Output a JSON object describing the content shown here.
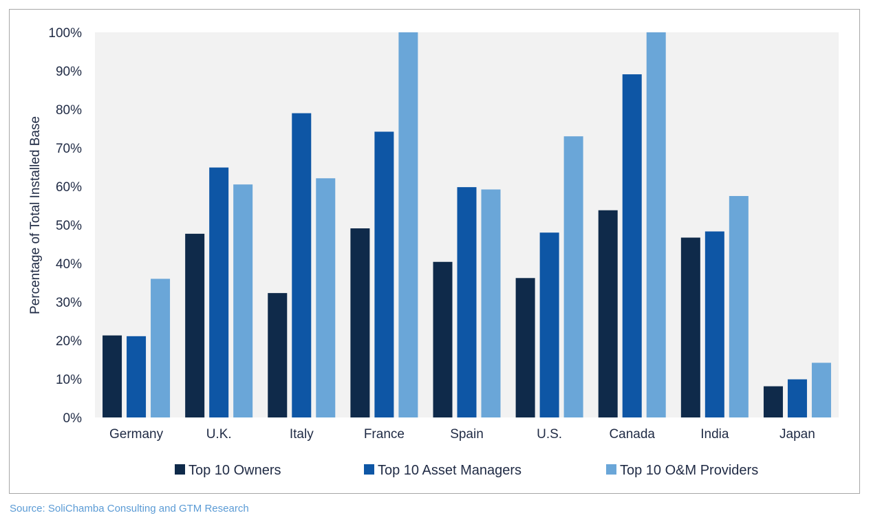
{
  "source_note": "Source: SoliChamba Consulting and GTM Research",
  "colors": {
    "plot_background": "#f2f2f2",
    "axis_text": "#1f2a44",
    "source_text": "#5b9bd5"
  },
  "chart_data": {
    "type": "bar",
    "title": "",
    "xlabel": "",
    "ylabel": "Percentage of Total Installed Base",
    "ylim": [
      0,
      100
    ],
    "y_ticks": [
      0,
      10,
      20,
      30,
      40,
      50,
      60,
      70,
      80,
      90,
      100
    ],
    "y_tick_labels": [
      "0%",
      "10%",
      "20%",
      "30%",
      "40%",
      "50%",
      "60%",
      "70%",
      "80%",
      "90%",
      "100%"
    ],
    "grid": false,
    "legend_position": "bottom",
    "categories": [
      "Germany",
      "U.K.",
      "Italy",
      "France",
      "Spain",
      "U.S.",
      "Canada",
      "India",
      "Japan"
    ],
    "series": [
      {
        "name": "Top 10 Owners",
        "color": "#0f2a4a",
        "values": [
          21.3,
          47.7,
          32.3,
          49.1,
          40.4,
          36.2,
          53.8,
          46.7,
          8.1
        ]
      },
      {
        "name": "Top 10 Asset Managers",
        "color": "#0e56a5",
        "values": [
          21.1,
          64.9,
          79.0,
          74.2,
          59.8,
          48.0,
          89.1,
          48.3,
          9.9
        ]
      },
      {
        "name": "Top 10 O&M Providers",
        "color": "#6aa6d8",
        "values": [
          36.0,
          60.5,
          62.1,
          100.0,
          59.2,
          73.0,
          100.0,
          57.5,
          14.2
        ]
      }
    ]
  }
}
